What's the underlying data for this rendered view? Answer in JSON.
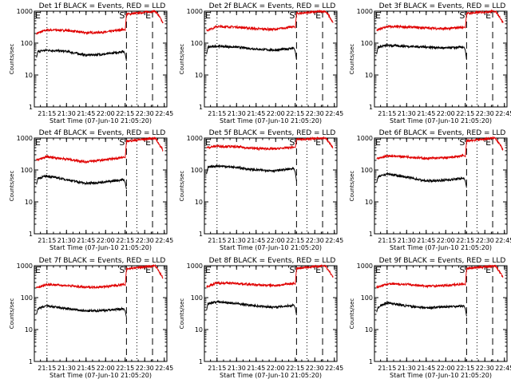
{
  "figure": {
    "background": "#ffffff",
    "colors": {
      "events": "#000000",
      "lld": "#e00000",
      "axes": "#000000"
    },
    "rows": 3,
    "cols": 3
  },
  "chart_data": [
    {
      "type": "line",
      "title": "Det 1f BLACK = Events, RED = LLD",
      "xlabel": "Start Time (07-Jun-10 21:05:20)",
      "ylabel": "Counts/sec",
      "yscale": "log",
      "ylim": [
        1,
        1000
      ],
      "yticks": [
        "1",
        "10",
        "100",
        "1000"
      ],
      "xticks": [
        "21:15",
        "21:30",
        "21:45",
        "22:00",
        "22:15",
        "22:30",
        "22:45"
      ],
      "xlim": [
        "21:05:20",
        "22:47:00"
      ],
      "markers": [
        {
          "label": "S",
          "time": "22:16:00",
          "style": "dashed"
        },
        {
          "label": "E",
          "time": "22:36:00",
          "style": "dashed"
        },
        {
          "label": "",
          "time": "21:15:00",
          "style": "dotted"
        },
        {
          "label": "",
          "time": "22:24:00",
          "style": "dotted"
        }
      ],
      "series": [
        {
          "name": "LLD",
          "color": "#e00000",
          "times": [
            "21:07:00",
            "21:15:00",
            "21:30:00",
            "21:45:00",
            "22:00:00",
            "22:14:00",
            "22:15:00",
            "22:16:00",
            "22:38:00",
            "22:41:00",
            "22:44:00"
          ],
          "values": [
            200,
            260,
            250,
            210,
            220,
            270,
            250,
            800,
            1000,
            700,
            420
          ]
        },
        {
          "name": "Events",
          "color": "#000000",
          "times": [
            "21:07:00",
            "21:08:00",
            "21:15:00",
            "21:30:00",
            "21:45:00",
            "22:00:00",
            "22:14:00",
            "22:15:00",
            "22:16:00"
          ],
          "values": [
            35,
            55,
            60,
            55,
            42,
            45,
            55,
            45,
            28
          ]
        }
      ]
    },
    {
      "type": "line",
      "title": "Det 2f BLACK = Events, RED = LLD",
      "xlabel": "Start Time (07-Jun-10 21:05:20)",
      "ylabel": "Counts/sec",
      "yscale": "log",
      "ylim": [
        1,
        1000
      ],
      "yticks": [
        "1",
        "10",
        "100",
        "1000"
      ],
      "xticks": [
        "21:15",
        "21:30",
        "21:45",
        "22:00",
        "22:15",
        "22:30",
        "22:45"
      ],
      "xlim": [
        "21:05:20",
        "22:47:00"
      ],
      "markers": [
        {
          "label": "S",
          "time": "22:16:00",
          "style": "dashed"
        },
        {
          "label": "E",
          "time": "22:36:00",
          "style": "dashed"
        },
        {
          "label": "",
          "time": "21:15:00",
          "style": "dotted"
        },
        {
          "label": "",
          "time": "22:24:00",
          "style": "dotted"
        }
      ],
      "series": [
        {
          "name": "LLD",
          "color": "#e00000",
          "times": [
            "21:07:00",
            "21:15:00",
            "21:30:00",
            "21:45:00",
            "22:00:00",
            "22:14:00",
            "22:15:00",
            "22:16:00",
            "22:38:00",
            "22:41:00",
            "22:44:00"
          ],
          "values": [
            250,
            330,
            320,
            280,
            270,
            330,
            300,
            850,
            1000,
            700,
            430
          ]
        },
        {
          "name": "Events",
          "color": "#000000",
          "times": [
            "21:07:00",
            "21:08:00",
            "21:15:00",
            "21:30:00",
            "21:45:00",
            "22:00:00",
            "22:14:00",
            "22:15:00",
            "22:16:00"
          ],
          "values": [
            45,
            75,
            80,
            75,
            65,
            60,
            70,
            55,
            30
          ]
        }
      ]
    },
    {
      "type": "line",
      "title": "Det 3f BLACK = Events, RED = LLD",
      "xlabel": "Start Time (07-Jun-10 21:05:20)",
      "ylabel": "Counts/sec",
      "yscale": "log",
      "ylim": [
        1,
        1000
      ],
      "yticks": [
        "1",
        "10",
        "100",
        "1000"
      ],
      "xticks": [
        "21:15",
        "21:30",
        "21:45",
        "22:00",
        "22:15",
        "22:30",
        "22:45"
      ],
      "xlim": [
        "21:05:20",
        "22:47:00"
      ],
      "markers": [
        {
          "label": "S",
          "time": "22:16:00",
          "style": "dashed"
        },
        {
          "label": "E",
          "time": "22:36:00",
          "style": "dashed"
        },
        {
          "label": "",
          "time": "21:15:00",
          "style": "dotted"
        },
        {
          "label": "",
          "time": "22:24:00",
          "style": "dotted"
        }
      ],
      "series": [
        {
          "name": "LLD",
          "color": "#e00000",
          "times": [
            "21:07:00",
            "21:15:00",
            "21:30:00",
            "21:45:00",
            "22:00:00",
            "22:14:00",
            "22:15:00",
            "22:16:00",
            "22:38:00",
            "22:41:00",
            "22:44:00"
          ],
          "values": [
            250,
            330,
            320,
            300,
            280,
            320,
            300,
            850,
            1000,
            700,
            430
          ]
        },
        {
          "name": "Events",
          "color": "#000000",
          "times": [
            "21:07:00",
            "21:08:00",
            "21:15:00",
            "21:30:00",
            "21:45:00",
            "22:00:00",
            "22:14:00",
            "22:15:00",
            "22:16:00"
          ],
          "values": [
            45,
            75,
            85,
            80,
            75,
            70,
            75,
            60,
            30
          ]
        }
      ]
    },
    {
      "type": "line",
      "title": "Det 4f BLACK = Events, RED = LLD",
      "xlabel": "Start Time (07-Jun-10 21:05:20)",
      "ylabel": "Counts/sec",
      "yscale": "log",
      "ylim": [
        1,
        1000
      ],
      "yticks": [
        "1",
        "10",
        "100",
        "1000"
      ],
      "xticks": [
        "21:15",
        "21:30",
        "21:45",
        "22:00",
        "22:15",
        "22:30",
        "22:45"
      ],
      "xlim": [
        "21:05:20",
        "22:47:00"
      ],
      "markers": [
        {
          "label": "S",
          "time": "22:16:00",
          "style": "dashed"
        },
        {
          "label": "E",
          "time": "22:36:00",
          "style": "dashed"
        },
        {
          "label": "",
          "time": "21:15:00",
          "style": "dotted"
        },
        {
          "label": "",
          "time": "22:24:00",
          "style": "dotted"
        }
      ],
      "series": [
        {
          "name": "LLD",
          "color": "#e00000",
          "times": [
            "21:07:00",
            "21:15:00",
            "21:30:00",
            "21:45:00",
            "22:00:00",
            "22:14:00",
            "22:15:00",
            "22:16:00",
            "22:38:00",
            "22:41:00",
            "22:44:00"
          ],
          "values": [
            200,
            260,
            220,
            180,
            210,
            250,
            240,
            800,
            1000,
            650,
            420
          ]
        },
        {
          "name": "Events",
          "color": "#000000",
          "times": [
            "21:07:00",
            "21:08:00",
            "21:15:00",
            "21:30:00",
            "21:45:00",
            "22:00:00",
            "22:14:00",
            "22:15:00",
            "22:16:00"
          ],
          "values": [
            35,
            55,
            65,
            50,
            38,
            42,
            50,
            40,
            25
          ]
        }
      ]
    },
    {
      "type": "line",
      "title": "Det 5f BLACK = Events, RED = LLD",
      "xlabel": "Start Time (07-Jun-10 21:05:20)",
      "ylabel": "Counts/sec",
      "yscale": "log",
      "ylim": [
        1,
        1000
      ],
      "yticks": [
        "1",
        "10",
        "100",
        "1000"
      ],
      "xticks": [
        "21:15",
        "21:30",
        "21:45",
        "22:00",
        "22:15",
        "22:30",
        "22:45"
      ],
      "xlim": [
        "21:05:20",
        "22:47:00"
      ],
      "markers": [
        {
          "label": "S",
          "time": "22:16:00",
          "style": "dashed"
        },
        {
          "label": "E",
          "time": "22:36:00",
          "style": "dashed"
        },
        {
          "label": "",
          "time": "21:15:00",
          "style": "dotted"
        },
        {
          "label": "",
          "time": "22:24:00",
          "style": "dotted"
        }
      ],
      "series": [
        {
          "name": "LLD",
          "color": "#e00000",
          "times": [
            "21:07:00",
            "21:15:00",
            "21:30:00",
            "21:45:00",
            "22:00:00",
            "22:14:00",
            "22:15:00",
            "22:16:00",
            "22:38:00",
            "22:41:00",
            "22:44:00"
          ],
          "values": [
            500,
            560,
            530,
            470,
            460,
            520,
            500,
            900,
            1000,
            750,
            480
          ]
        },
        {
          "name": "Events",
          "color": "#000000",
          "times": [
            "21:07:00",
            "21:08:00",
            "21:15:00",
            "21:30:00",
            "21:45:00",
            "22:00:00",
            "22:14:00",
            "22:15:00",
            "22:16:00"
          ],
          "values": [
            75,
            120,
            135,
            120,
            100,
            95,
            110,
            85,
            45
          ]
        }
      ]
    },
    {
      "type": "line",
      "title": "Det 6f BLACK = Events, RED = LLD",
      "xlabel": "Start Time (07-Jun-10 21:05:20)",
      "ylabel": "Counts/sec",
      "yscale": "log",
      "ylim": [
        1,
        1000
      ],
      "yticks": [
        "1",
        "10",
        "100",
        "1000"
      ],
      "xticks": [
        "21:15",
        "21:30",
        "21:45",
        "22:00",
        "22:15",
        "22:30",
        "22:45"
      ],
      "xlim": [
        "21:05:20",
        "22:47:00"
      ],
      "markers": [
        {
          "label": "S",
          "time": "22:16:00",
          "style": "dashed"
        },
        {
          "label": "E",
          "time": "22:36:00",
          "style": "dashed"
        },
        {
          "label": "",
          "time": "21:15:00",
          "style": "dotted"
        },
        {
          "label": "",
          "time": "22:24:00",
          "style": "dotted"
        }
      ],
      "series": [
        {
          "name": "LLD",
          "color": "#e00000",
          "times": [
            "21:07:00",
            "21:15:00",
            "21:30:00",
            "21:45:00",
            "22:00:00",
            "22:14:00",
            "22:15:00",
            "22:16:00",
            "22:38:00",
            "22:41:00",
            "22:44:00"
          ],
          "values": [
            220,
            280,
            260,
            230,
            240,
            280,
            260,
            820,
            1000,
            680,
            430
          ]
        },
        {
          "name": "Events",
          "color": "#000000",
          "times": [
            "21:07:00",
            "21:08:00",
            "21:15:00",
            "21:30:00",
            "21:45:00",
            "22:00:00",
            "22:14:00",
            "22:15:00",
            "22:16:00"
          ],
          "values": [
            40,
            60,
            75,
            60,
            45,
            48,
            55,
            45,
            28
          ]
        }
      ]
    },
    {
      "type": "line",
      "title": "Det 7f BLACK = Events, RED = LLD",
      "xlabel": "Start Time (07-Jun-10 21:05:20)",
      "ylabel": "Counts/sec",
      "yscale": "log",
      "ylim": [
        1,
        1000
      ],
      "yticks": [
        "1",
        "10",
        "100",
        "1000"
      ],
      "xticks": [
        "21:15",
        "21:30",
        "21:45",
        "22:00",
        "22:15",
        "22:30",
        "22:45"
      ],
      "xlim": [
        "21:05:20",
        "22:47:00"
      ],
      "markers": [
        {
          "label": "S",
          "time": "22:16:00",
          "style": "dashed"
        },
        {
          "label": "E",
          "time": "22:36:00",
          "style": "dashed"
        },
        {
          "label": "",
          "time": "21:15:00",
          "style": "dotted"
        },
        {
          "label": "",
          "time": "22:24:00",
          "style": "dotted"
        }
      ],
      "series": [
        {
          "name": "LLD",
          "color": "#e00000",
          "times": [
            "21:07:00",
            "21:15:00",
            "21:30:00",
            "21:45:00",
            "22:00:00",
            "22:14:00",
            "22:15:00",
            "22:16:00",
            "22:38:00",
            "22:41:00",
            "22:44:00"
          ],
          "values": [
            200,
            260,
            240,
            210,
            220,
            260,
            240,
            800,
            1000,
            650,
            420
          ]
        },
        {
          "name": "Events",
          "color": "#000000",
          "times": [
            "21:07:00",
            "21:08:00",
            "21:15:00",
            "21:30:00",
            "21:45:00",
            "22:00:00",
            "22:14:00",
            "22:15:00",
            "22:16:00"
          ],
          "values": [
            30,
            45,
            55,
            45,
            38,
            40,
            45,
            38,
            24
          ]
        }
      ]
    },
    {
      "type": "line",
      "title": "Det 8f BLACK = Events, RED = LLD",
      "xlabel": "Start Time (07-Jun-10 21:05:20)",
      "ylabel": "Counts/sec",
      "yscale": "log",
      "ylim": [
        1,
        1000
      ],
      "yticks": [
        "1",
        "10",
        "100",
        "1000"
      ],
      "xticks": [
        "21:15",
        "21:30",
        "21:45",
        "22:00",
        "22:15",
        "22:30",
        "22:45"
      ],
      "xlim": [
        "21:05:20",
        "22:47:00"
      ],
      "markers": [
        {
          "label": "S",
          "time": "22:16:00",
          "style": "dashed"
        },
        {
          "label": "E",
          "time": "22:36:00",
          "style": "dashed"
        },
        {
          "label": "",
          "time": "21:15:00",
          "style": "dotted"
        },
        {
          "label": "",
          "time": "22:24:00",
          "style": "dotted"
        }
      ],
      "series": [
        {
          "name": "LLD",
          "color": "#e00000",
          "times": [
            "21:07:00",
            "21:15:00",
            "21:30:00",
            "21:45:00",
            "22:00:00",
            "22:14:00",
            "22:15:00",
            "22:16:00",
            "22:38:00",
            "22:41:00",
            "22:44:00"
          ],
          "values": [
            220,
            290,
            280,
            250,
            240,
            280,
            260,
            830,
            1000,
            680,
            430
          ]
        },
        {
          "name": "Events",
          "color": "#000000",
          "times": [
            "21:07:00",
            "21:08:00",
            "21:15:00",
            "21:30:00",
            "21:45:00",
            "22:00:00",
            "22:14:00",
            "22:15:00",
            "22:16:00"
          ],
          "values": [
            40,
            65,
            75,
            65,
            55,
            50,
            58,
            48,
            28
          ]
        }
      ]
    },
    {
      "type": "line",
      "title": "Det 9f BLACK = Events, RED = LLD",
      "xlabel": "Start Time (07-Jun-10 21:05:20)",
      "ylabel": "Counts/sec",
      "yscale": "log",
      "ylim": [
        1,
        1000
      ],
      "yticks": [
        "1",
        "10",
        "100",
        "1000"
      ],
      "xticks": [
        "21:15",
        "21:30",
        "21:45",
        "22:00",
        "22:15",
        "22:30",
        "22:45"
      ],
      "xlim": [
        "21:05:20",
        "22:47:00"
      ],
      "markers": [
        {
          "label": "S",
          "time": "22:16:00",
          "style": "dashed"
        },
        {
          "label": "E",
          "time": "22:36:00",
          "style": "dashed"
        },
        {
          "label": "",
          "time": "21:15:00",
          "style": "dotted"
        },
        {
          "label": "",
          "time": "22:24:00",
          "style": "dotted"
        }
      ],
      "series": [
        {
          "name": "LLD",
          "color": "#e00000",
          "times": [
            "21:07:00",
            "21:15:00",
            "21:30:00",
            "21:45:00",
            "22:00:00",
            "22:14:00",
            "22:15:00",
            "22:16:00",
            "22:38:00",
            "22:41:00",
            "22:44:00"
          ],
          "values": [
            210,
            270,
            260,
            230,
            240,
            270,
            250,
            820,
            1000,
            670,
            430
          ]
        },
        {
          "name": "Events",
          "color": "#000000",
          "times": [
            "21:07:00",
            "21:08:00",
            "21:15:00",
            "21:30:00",
            "21:45:00",
            "22:00:00",
            "22:14:00",
            "22:15:00",
            "22:16:00"
          ],
          "values": [
            35,
            50,
            70,
            55,
            48,
            52,
            55,
            45,
            26
          ]
        }
      ]
    }
  ]
}
